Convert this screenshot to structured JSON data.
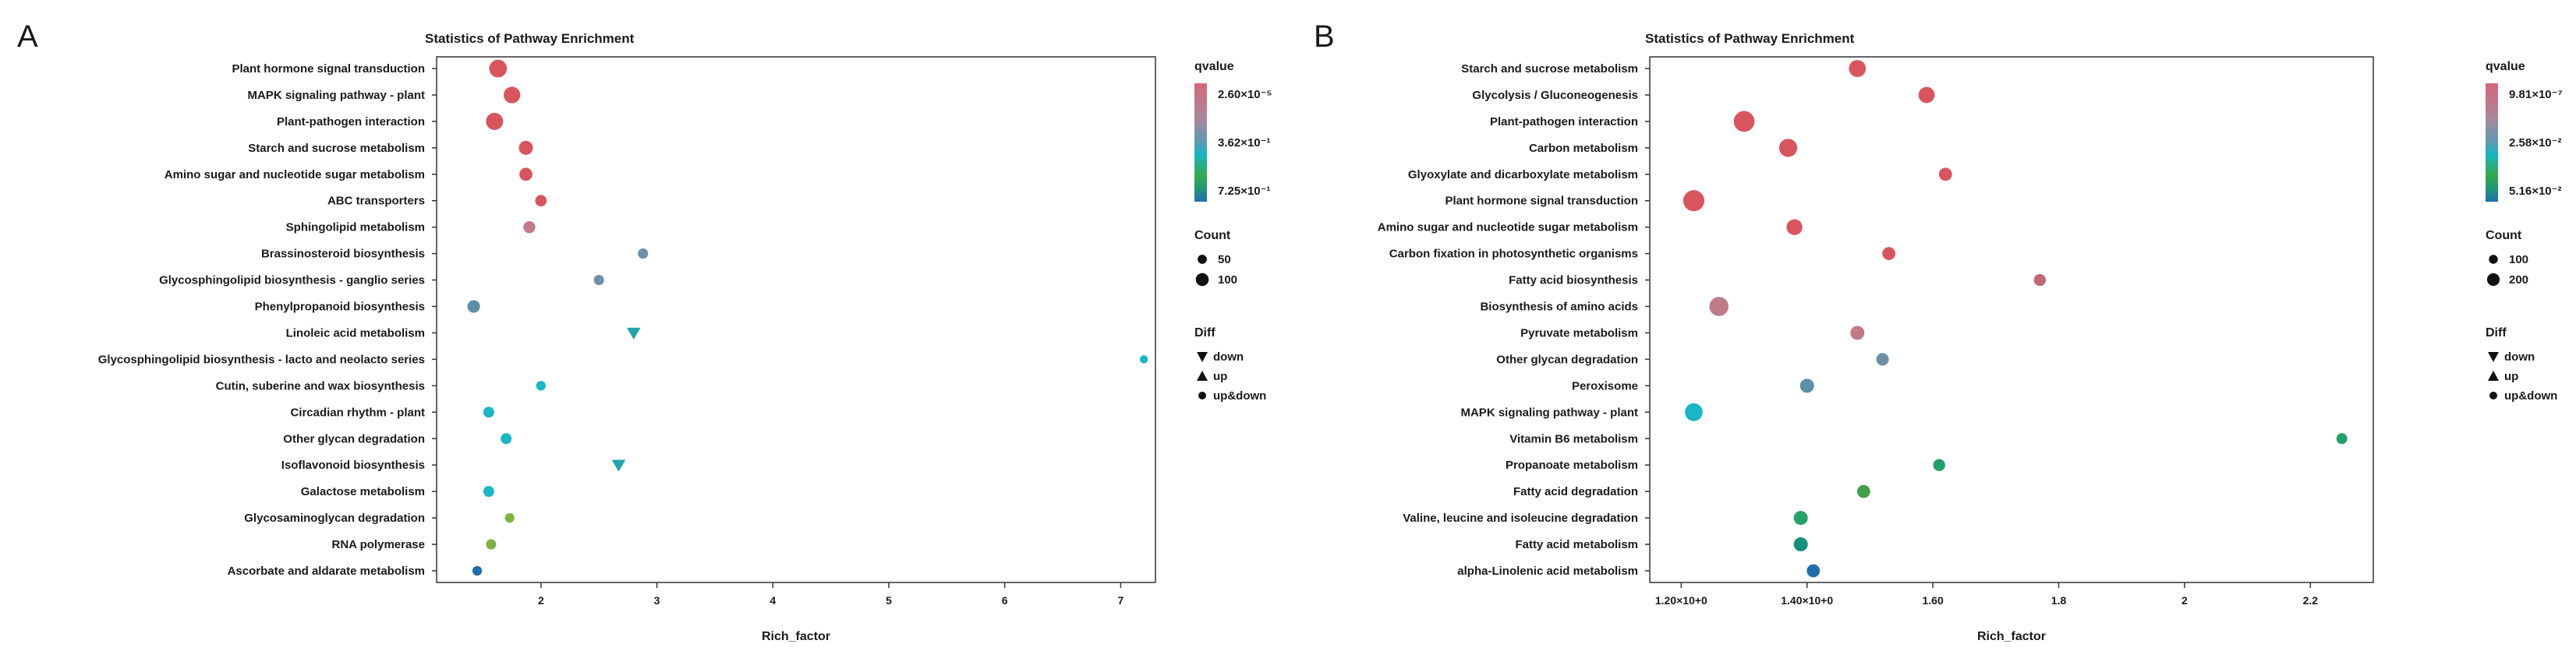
{
  "chart_data": [
    {
      "panel": "A",
      "type": "scatter",
      "title": "Statistics of Pathway Enrichment",
      "xlabel": "Rich_factor",
      "ylabel": "",
      "xlim": [
        1.1,
        7.3
      ],
      "xticks": [
        {
          "value": 2,
          "label": "2"
        },
        {
          "value": 3,
          "label": "3"
        },
        {
          "value": 4,
          "label": "4"
        },
        {
          "value": 5,
          "label": "5"
        },
        {
          "value": 6,
          "label": "6"
        },
        {
          "value": 7,
          "label": "7"
        }
      ],
      "colorbar": {
        "title": "qvalue",
        "labels": [
          "2.60×10⁻⁵",
          "3.62×10⁻¹",
          "7.25×10⁻¹"
        ]
      },
      "size_legend": {
        "title": "Count",
        "entries": [
          {
            "label": "50",
            "count": 50
          },
          {
            "label": "100",
            "count": 100
          }
        ]
      },
      "shape_legend": {
        "title": "Diff",
        "entries": [
          {
            "shape": "down",
            "label": "down"
          },
          {
            "shape": "up",
            "label": "up"
          },
          {
            "shape": "circle",
            "label": "up&down"
          }
        ]
      },
      "points": [
        {
          "pathway": "Plant hormone signal transduction",
          "x": 1.63,
          "count": 120,
          "color": "#d9555e",
          "shape": "circle"
        },
        {
          "pathway": "MAPK signaling pathway - plant",
          "x": 1.75,
          "count": 105,
          "color": "#d9555e",
          "shape": "circle"
        },
        {
          "pathway": "Plant-pathogen interaction",
          "x": 1.6,
          "count": 112,
          "color": "#d9555e",
          "shape": "circle"
        },
        {
          "pathway": "Starch and sucrose metabolism",
          "x": 1.87,
          "count": 75,
          "color": "#d9555e",
          "shape": "circle"
        },
        {
          "pathway": "Amino sugar and nucleotide sugar metabolism",
          "x": 1.87,
          "count": 65,
          "color": "#d9555e",
          "shape": "circle"
        },
        {
          "pathway": "ABC transporters",
          "x": 2.0,
          "count": 50,
          "color": "#d9555e",
          "shape": "circle"
        },
        {
          "pathway": "Sphingolipid metabolism",
          "x": 1.9,
          "count": 55,
          "color": "#c07a88",
          "shape": "circle"
        },
        {
          "pathway": "Brassinosteroid biosynthesis",
          "x": 2.88,
          "count": 40,
          "color": "#6f8fa7",
          "shape": "circle"
        },
        {
          "pathway": "Glycosphingolipid biosynthesis - ganglio series",
          "x": 2.5,
          "count": 40,
          "color": "#6f8fa7",
          "shape": "circle"
        },
        {
          "pathway": "Phenylpropanoid biosynthesis",
          "x": 1.42,
          "count": 60,
          "color": "#5b90a8",
          "shape": "circle"
        },
        {
          "pathway": "Linoleic acid metabolism",
          "x": 2.8,
          "count": 40,
          "color": "#21a5ad",
          "shape": "down"
        },
        {
          "pathway": "Glycosphingolipid biosynthesis - lacto and neolacto series",
          "x": 7.2,
          "count": 25,
          "color": "#19b6c4",
          "shape": "circle"
        },
        {
          "pathway": "Cutin, suberine and wax biosynthesis",
          "x": 2.0,
          "count": 35,
          "color": "#19b6c4",
          "shape": "circle"
        },
        {
          "pathway": "Circadian rhythm - plant",
          "x": 1.55,
          "count": 45,
          "color": "#19b6c4",
          "shape": "circle"
        },
        {
          "pathway": "Other glycan degradation",
          "x": 1.7,
          "count": 45,
          "color": "#19b6c4",
          "shape": "circle"
        },
        {
          "pathway": "Isoflavonoid biosynthesis",
          "x": 2.67,
          "count": 40,
          "color": "#21a5ad",
          "shape": "down"
        },
        {
          "pathway": "Galactose metabolism",
          "x": 1.55,
          "count": 45,
          "color": "#19b6c4",
          "shape": "circle"
        },
        {
          "pathway": "Glycosaminoglycan degradation",
          "x": 1.73,
          "count": 35,
          "color": "#7cb342",
          "shape": "circle"
        },
        {
          "pathway": "RNA polymerase",
          "x": 1.57,
          "count": 40,
          "color": "#7cb342",
          "shape": "circle"
        },
        {
          "pathway": "Ascorbate and aldarate metabolism",
          "x": 1.45,
          "count": 35,
          "color": "#1f6eae",
          "shape": "circle"
        }
      ]
    },
    {
      "panel": "B",
      "type": "scatter",
      "title": "Statistics of Pathway Enrichment",
      "xlabel": "Rich_factor",
      "ylabel": "",
      "xlim": [
        1.15,
        2.3
      ],
      "xticks": [
        {
          "value": 1.2,
          "label": "1.20×10+0"
        },
        {
          "value": 1.4,
          "label": "1.40×10+0"
        },
        {
          "value": 1.6,
          "label": "1.60"
        },
        {
          "value": 1.8,
          "label": "1.8"
        },
        {
          "value": 2.0,
          "label": "2"
        },
        {
          "value": 2.2,
          "label": "2.2"
        }
      ],
      "colorbar": {
        "title": "qvalue",
        "labels": [
          "9.81×10⁻⁷",
          "2.58×10⁻²",
          "5.16×10⁻²"
        ]
      },
      "size_legend": {
        "title": "Count",
        "entries": [
          {
            "label": "100",
            "count": 100
          },
          {
            "label": "200",
            "count": 200
          }
        ]
      },
      "shape_legend": {
        "title": "Diff",
        "entries": [
          {
            "shape": "down",
            "label": "down"
          },
          {
            "shape": "up",
            "label": "up"
          },
          {
            "shape": "circle",
            "label": "up&down"
          }
        ]
      },
      "points": [
        {
          "pathway": "Starch and sucrose metabolism",
          "x": 1.48,
          "count": 110,
          "color": "#d9555e",
          "shape": "circle"
        },
        {
          "pathway": "Glycolysis / Gluconeogenesis",
          "x": 1.59,
          "count": 100,
          "color": "#d9555e",
          "shape": "circle"
        },
        {
          "pathway": "Plant-pathogen interaction",
          "x": 1.3,
          "count": 165,
          "color": "#d9555e",
          "shape": "circle"
        },
        {
          "pathway": "Carbon metabolism",
          "x": 1.37,
          "count": 125,
          "color": "#d9555e",
          "shape": "circle"
        },
        {
          "pathway": "Glyoxylate and dicarboxylate metabolism",
          "x": 1.62,
          "count": 65,
          "color": "#d9555e",
          "shape": "circle"
        },
        {
          "pathway": "Plant hormone signal transduction",
          "x": 1.22,
          "count": 170,
          "color": "#d9555e",
          "shape": "circle"
        },
        {
          "pathway": "Amino sugar and nucleotide sugar metabolism",
          "x": 1.38,
          "count": 95,
          "color": "#d9555e",
          "shape": "circle"
        },
        {
          "pathway": "Carbon fixation in photosynthetic organisms",
          "x": 1.53,
          "count": 65,
          "color": "#d9555e",
          "shape": "circle"
        },
        {
          "pathway": "Fatty acid biosynthesis",
          "x": 1.77,
          "count": 55,
          "color": "#c06a78",
          "shape": "circle"
        },
        {
          "pathway": "Biosynthesis of amino acids",
          "x": 1.26,
          "count": 140,
          "color": "#c07a88",
          "shape": "circle"
        },
        {
          "pathway": "Pyruvate metabolism",
          "x": 1.48,
          "count": 75,
          "color": "#c07a88",
          "shape": "circle"
        },
        {
          "pathway": "Other glycan degradation",
          "x": 1.52,
          "count": 60,
          "color": "#6f8fa7",
          "shape": "circle"
        },
        {
          "pathway": "Peroxisome",
          "x": 1.4,
          "count": 75,
          "color": "#5b90a8",
          "shape": "circle"
        },
        {
          "pathway": "MAPK signaling pathway - plant",
          "x": 1.22,
          "count": 120,
          "color": "#19b6c4",
          "shape": "circle"
        },
        {
          "pathway": "Vitamin B6 metabolism",
          "x": 2.25,
          "count": 45,
          "color": "#20a06a",
          "shape": "circle"
        },
        {
          "pathway": "Propanoate metabolism",
          "x": 1.61,
          "count": 55,
          "color": "#20a06a",
          "shape": "circle"
        },
        {
          "pathway": "Fatty acid degradation",
          "x": 1.49,
          "count": 65,
          "color": "#43a047",
          "shape": "circle"
        },
        {
          "pathway": "Valine, leucine and isoleucine degradation",
          "x": 1.39,
          "count": 75,
          "color": "#26a269",
          "shape": "circle"
        },
        {
          "pathway": "Fatty acid metabolism",
          "x": 1.39,
          "count": 75,
          "color": "#138f7a",
          "shape": "circle"
        },
        {
          "pathway": "alpha-Linolenic acid metabolism",
          "x": 1.41,
          "count": 65,
          "color": "#1f6eae",
          "shape": "circle"
        }
      ]
    }
  ]
}
